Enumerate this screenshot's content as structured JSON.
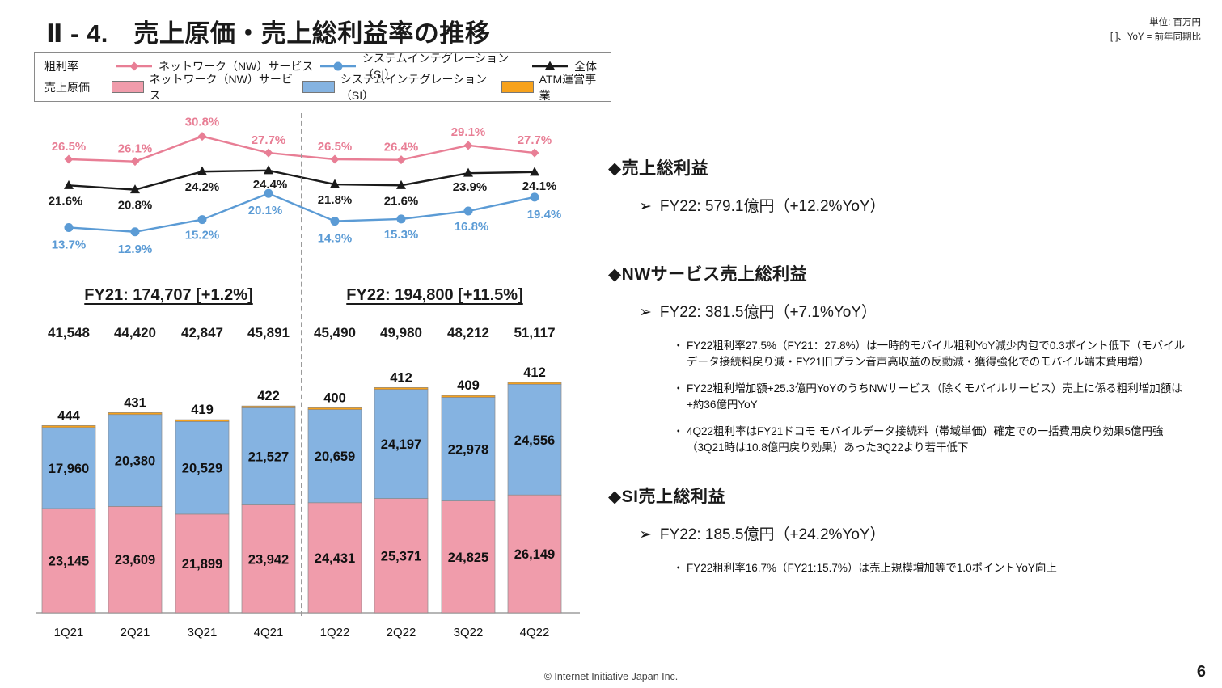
{
  "slide": {
    "title": "Ⅱ - 4.　売上原価・売上総利益率の推移",
    "unit_note_line1": "単位: 百万円",
    "unit_note_line2": "[ ]、YoY = 前年同期比",
    "footer_copyright": "© Internet Initiative Japan Inc.",
    "page_number": "6"
  },
  "legend": {
    "rows": [
      {
        "label": "粗利率",
        "items": [
          {
            "name": "ネットワーク（NW）サービス",
            "marker": "diamond-line",
            "color": "#e87e95"
          },
          {
            "name": "システムインテグレーション（SI）",
            "marker": "circle-line",
            "color": "#5b9bd5"
          },
          {
            "name": "全体",
            "marker": "triangle-line",
            "color": "#1a1a1a"
          }
        ]
      },
      {
        "label": "売上原価",
        "items": [
          {
            "name": "ネットワーク（NW）サービス",
            "marker": "swatch",
            "color": "#f09cab"
          },
          {
            "name": "システムインテグレーション（SI）",
            "marker": "swatch",
            "color": "#85b3e1"
          },
          {
            "name": "ATM運営事業",
            "marker": "swatch",
            "color": "#f7a21c"
          }
        ]
      }
    ]
  },
  "chart_data": {
    "type": "combo",
    "categories": [
      "1Q21",
      "2Q21",
      "3Q21",
      "4Q21",
      "1Q22",
      "2Q22",
      "3Q22",
      "4Q22"
    ],
    "line_unit": "%",
    "bar_unit": "百万円",
    "line_series": [
      {
        "name": "粗利率 ネットワーク（NW）サービス",
        "marker": "diamond",
        "color": "#e87e95",
        "values": [
          26.5,
          26.1,
          30.8,
          27.7,
          26.5,
          26.4,
          29.1,
          27.7
        ]
      },
      {
        "name": "粗利率 全体",
        "marker": "triangle",
        "color": "#1a1a1a",
        "values": [
          21.6,
          20.8,
          24.2,
          24.4,
          21.8,
          21.6,
          23.9,
          24.1
        ]
      },
      {
        "name": "粗利率 システムインテグレーション（SI）",
        "marker": "circle",
        "color": "#5b9bd5",
        "values": [
          13.7,
          12.9,
          15.2,
          20.1,
          14.9,
          15.3,
          16.8,
          19.4
        ]
      }
    ],
    "bar_series": [
      {
        "name": "売上原価 ネットワーク（NW）サービス",
        "color": "#f09cab",
        "values": [
          23145,
          23609,
          21899,
          23942,
          24431,
          25371,
          24825,
          26149
        ]
      },
      {
        "name": "売上原価 システムインテグレーション（SI）",
        "color": "#85b3e1",
        "values": [
          17960,
          20380,
          20529,
          21527,
          20659,
          24197,
          22978,
          24556
        ]
      },
      {
        "name": "売上原価 ATM運営事業",
        "color": "#f7a21c",
        "values": [
          444,
          431,
          419,
          422,
          400,
          412,
          409,
          412
        ]
      }
    ],
    "quarter_totals": [
      41548,
      44420,
      42847,
      45891,
      45490,
      49980,
      48212,
      51117
    ],
    "fy_labels": [
      "FY21: 174,707 [+1.2%]",
      "FY22: 194,800 [+11.5%]"
    ]
  },
  "notes": {
    "glyphs": {
      "section": "◆",
      "lead": "➢",
      "bullet": "・"
    },
    "sections": [
      {
        "heading": "売上総利益",
        "lead": "FY22: 579.1億円（+12.2%YoY）",
        "bullets": []
      },
      {
        "heading": "NWサービス売上総利益",
        "lead": "FY22: 381.5億円（+7.1%YoY）",
        "bullets": [
          "FY22粗利率27.5%（FY21：27.8%）は一時的モバイル粗利YoY減少内包で0.3ポイント低下（モバイルデータ接続料戻り減・FY21旧プラン音声高収益の反動減・獲得強化でのモバイル端末費用増）",
          "FY22粗利増加額+25.3億円YoYのうちNWサービス（除くモバイルサービス）売上に係る粗利増加額は+約36億円YoY",
          "4Q22粗利率はFY21ドコモ モバイルデータ接続料（帯域単価）確定での一括費用戻り効果5億円強（3Q21時は10.8億円戻り効果）あった3Q22より若干低下"
        ]
      },
      {
        "heading": "SI売上総利益",
        "lead": "FY22: 185.5億円（+24.2%YoY）",
        "bullets": [
          "FY22粗利率16.7%（FY21:15.7%）は売上規模増加等で1.0ポイントYoY向上"
        ]
      }
    ]
  }
}
